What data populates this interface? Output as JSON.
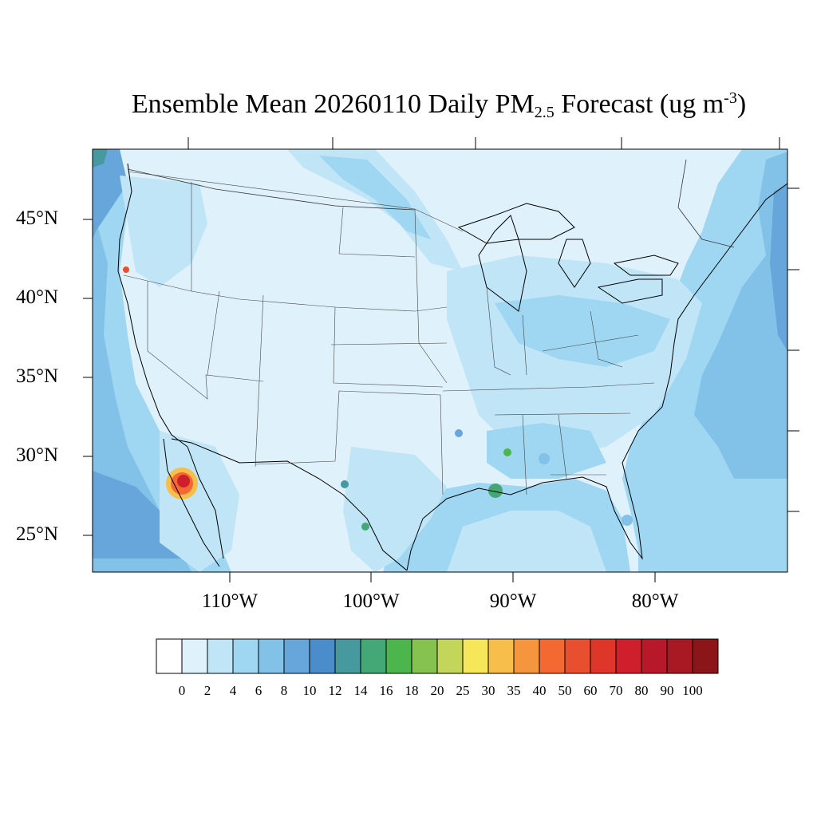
{
  "title": {
    "prefix": "Ensemble Mean 20260110 Daily PM",
    "subscript": "2.5",
    "middle": " Forecast (ug m",
    "superscript": "-3",
    "suffix": ")"
  },
  "map": {
    "lat_labels": [
      "45°N",
      "40°N",
      "35°N",
      "30°N",
      "25°N"
    ],
    "lon_labels": [
      "110°W",
      "100°W",
      "90°W",
      "80°W"
    ],
    "background_color": "#dff1fb"
  },
  "colorbar": {
    "labels": [
      "0",
      "2",
      "4",
      "6",
      "8",
      "10",
      "12",
      "14",
      "16",
      "18",
      "20",
      "25",
      "30",
      "35",
      "40",
      "50",
      "60",
      "70",
      "80",
      "90",
      "100"
    ],
    "colors": [
      "#ffffff",
      "#dff1fb",
      "#bfe5f7",
      "#9fd6f2",
      "#82c1e8",
      "#66a6da",
      "#4b8ccb",
      "#46999f",
      "#44a876",
      "#4cb54c",
      "#86c24f",
      "#c4d65a",
      "#f6e65a",
      "#f8be4a",
      "#f5963e",
      "#f26a31",
      "#e84f2f",
      "#de3629",
      "#cf1f2d",
      "#b8192a",
      "#a91923",
      "#8c1519"
    ]
  }
}
